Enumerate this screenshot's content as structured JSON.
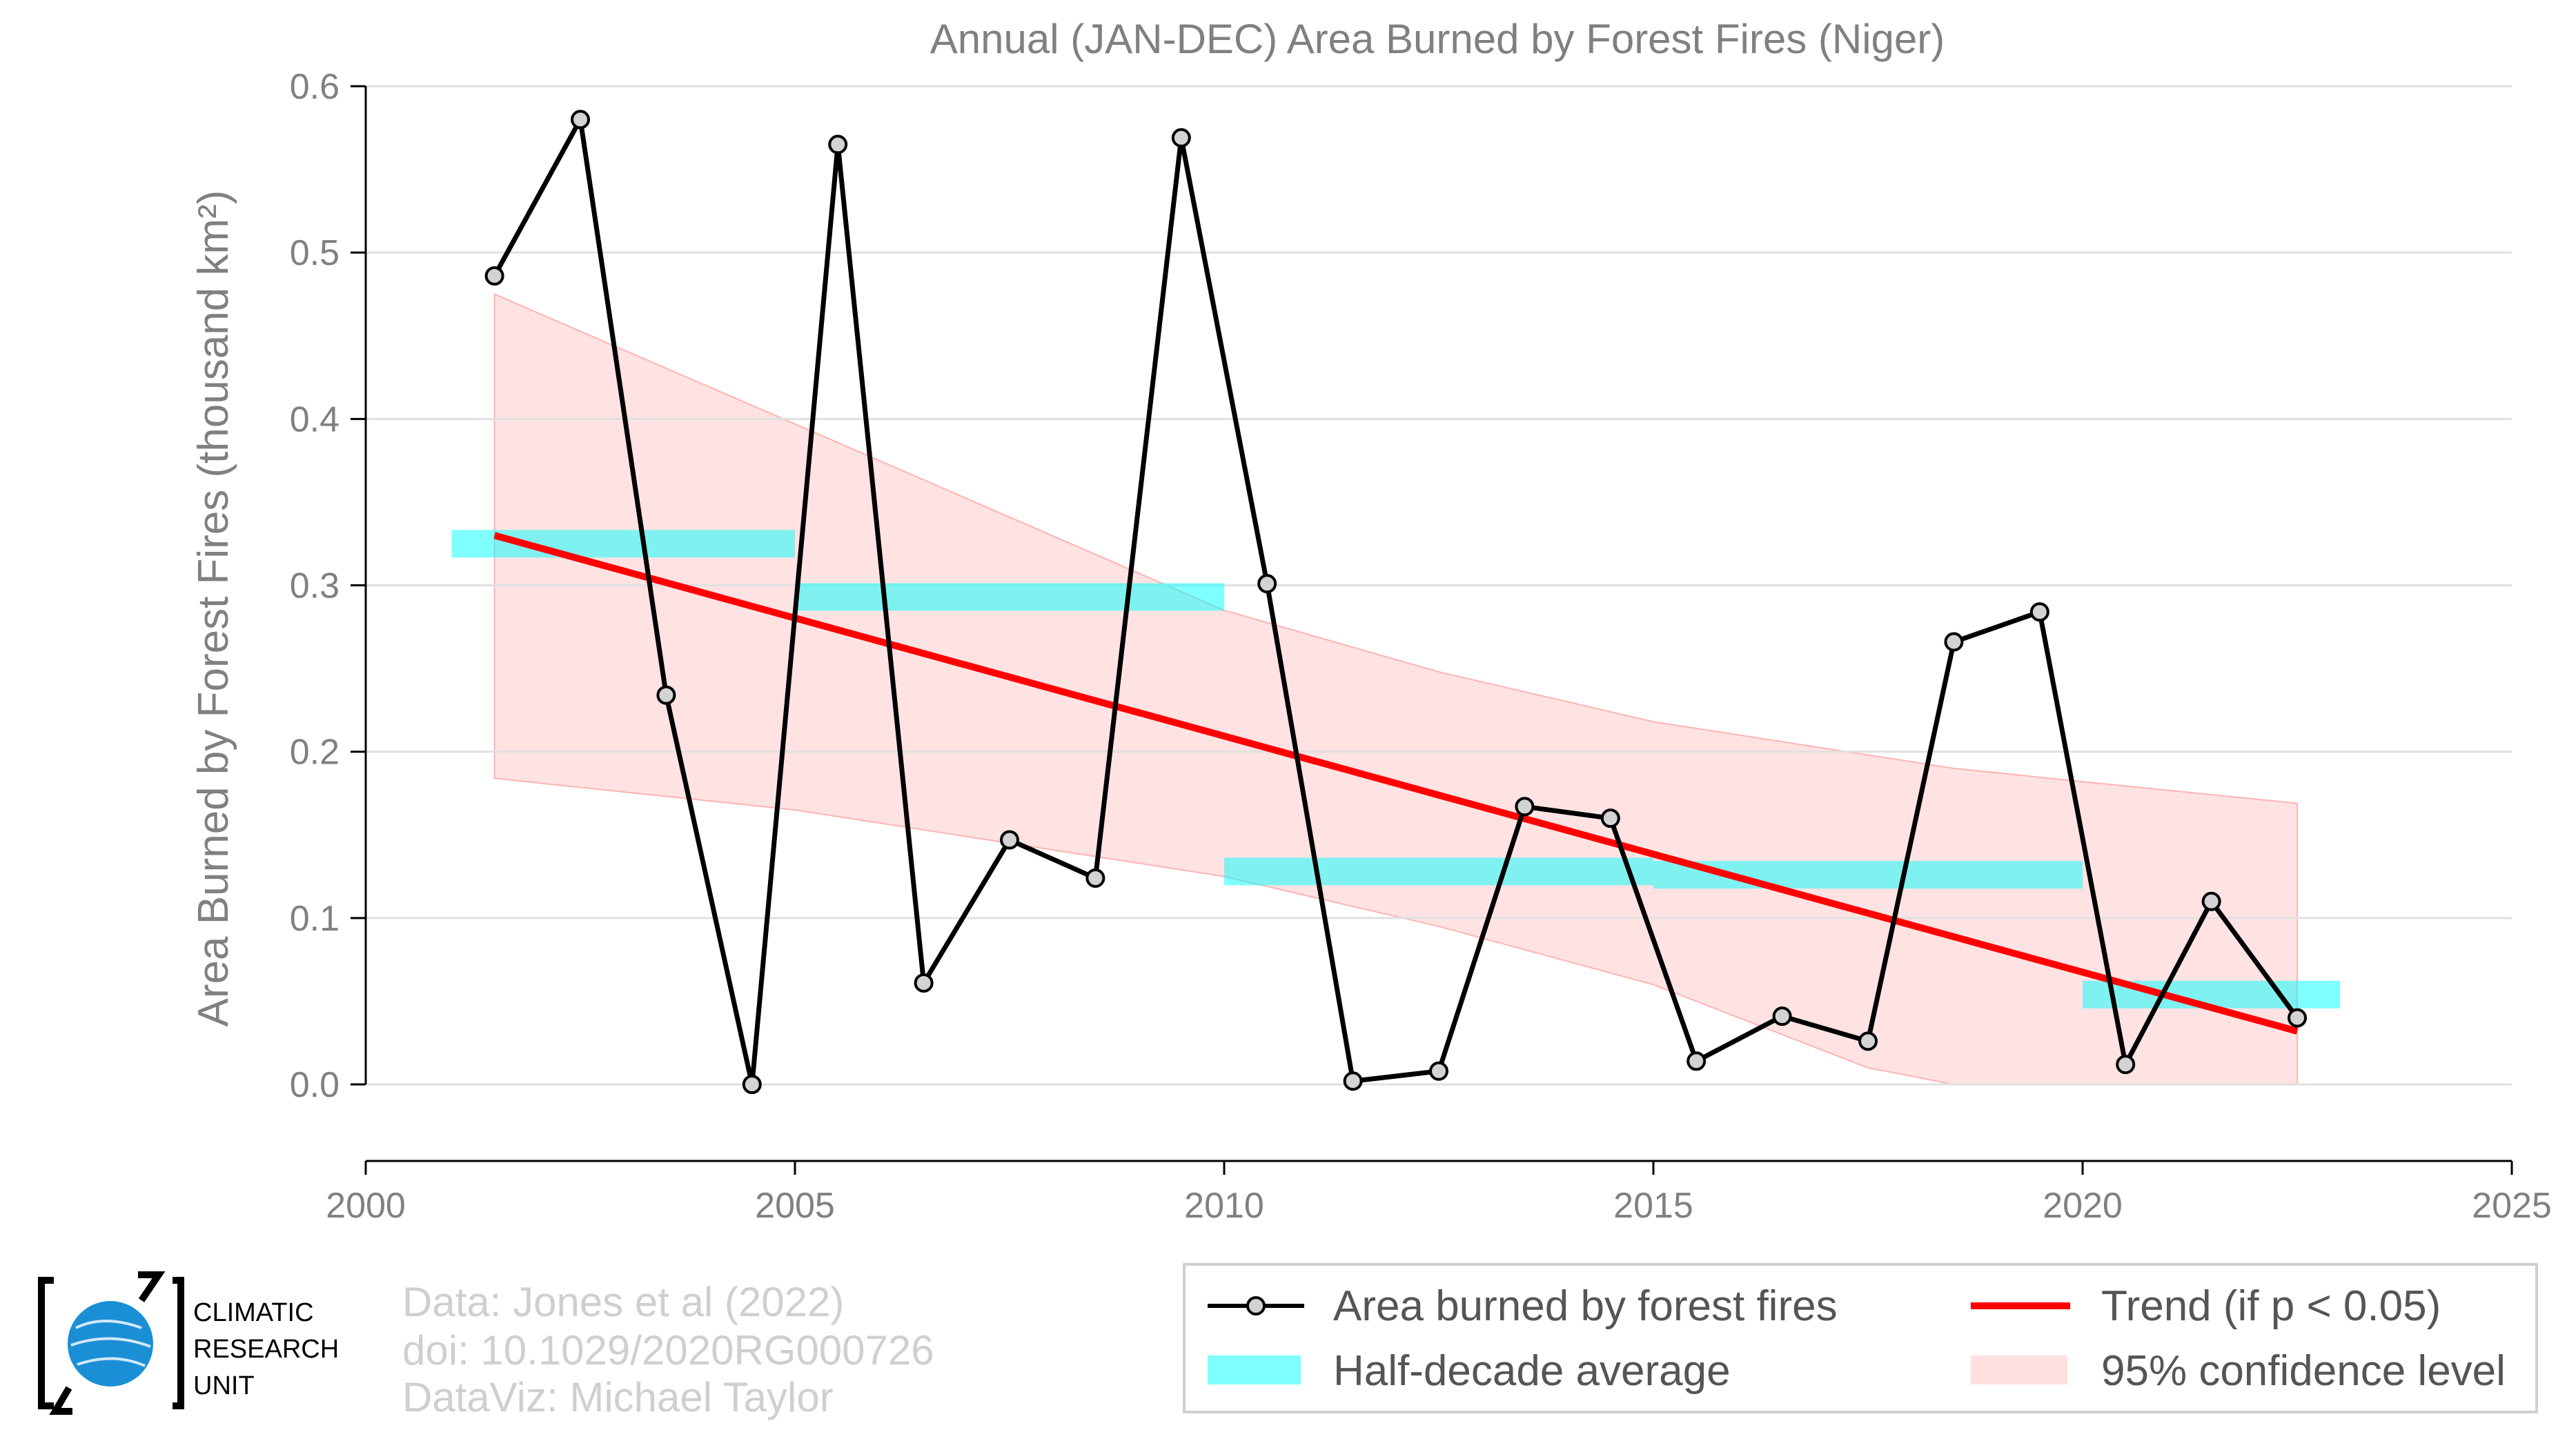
{
  "chart_data": {
    "type": "line",
    "title": "Annual (JAN-DEC) Area Burned by Forest Fires (Niger)",
    "xlabel": "",
    "ylabel": "Area Burned by Forest Fires (thousand km²)",
    "xlim": [
      2000,
      2025
    ],
    "ylim": [
      -0.046,
      0.6
    ],
    "xticks": [
      2000,
      2005,
      2010,
      2015,
      2020,
      2025
    ],
    "yticks": [
      0.0,
      0.1,
      0.2,
      0.3,
      0.4,
      0.5,
      0.6
    ],
    "grid": "horizontal",
    "legend_position": "bottom-right",
    "series": [
      {
        "name": "Area burned by forest fires",
        "kind": "line-markers",
        "color": "#000000",
        "x": [
          2001.5,
          2002.5,
          2003.5,
          2004.5,
          2005.5,
          2006.5,
          2007.5,
          2008.5,
          2009.5,
          2010.5,
          2011.5,
          2012.5,
          2013.5,
          2014.5,
          2015.5,
          2016.5,
          2017.5,
          2018.5,
          2019.5,
          2020.5,
          2021.5,
          2022.5
        ],
        "y": [
          0.486,
          0.58,
          0.234,
          0.0,
          0.565,
          0.061,
          0.147,
          0.124,
          0.569,
          0.301,
          0.002,
          0.008,
          0.167,
          0.16,
          0.014,
          0.041,
          0.026,
          0.266,
          0.284,
          0.012,
          0.11,
          0.04
        ]
      },
      {
        "name": "Half-decade average",
        "kind": "segments",
        "color": "#00ffff",
        "segments": [
          {
            "x0": 2001.0,
            "x1": 2005.0,
            "y": 0.325
          },
          {
            "x0": 2005.0,
            "x1": 2010.0,
            "y": 0.293
          },
          {
            "x0": 2010.0,
            "x1": 2015.0,
            "y": 0.128
          },
          {
            "x0": 2015.0,
            "x1": 2020.0,
            "y": 0.126
          },
          {
            "x0": 2020.0,
            "x1": 2023.0,
            "y": 0.054
          }
        ]
      },
      {
        "name": "Trend (if p < 0.05)",
        "kind": "line",
        "color": "#ff0000",
        "x": [
          2001.5,
          2022.5
        ],
        "y": [
          0.33,
          0.032
        ]
      },
      {
        "name": "95% confidence level",
        "kind": "band",
        "color": "#ffcccc",
        "x": [
          2001.5,
          2005.0,
          2010.0,
          2012.5,
          2015.0,
          2017.5,
          2018.5,
          2020.0,
          2022.5
        ],
        "upper": [
          0.475,
          0.397,
          0.285,
          0.248,
          0.218,
          0.198,
          0.19,
          0.182,
          0.169
        ],
        "lower": [
          0.184,
          0.165,
          0.125,
          0.095,
          0.06,
          0.01,
          0.0,
          0.0,
          0.0
        ]
      }
    ]
  },
  "credits": {
    "lines": [
      "Data: Jones et al (2022)",
      "doi: 10.1029/2020RG000726",
      "DataViz: Michael Taylor"
    ]
  },
  "logo": {
    "lines": [
      "CLIMATIC",
      "RESEARCH",
      "UNIT"
    ],
    "accent_color": "#1a8fd6"
  }
}
